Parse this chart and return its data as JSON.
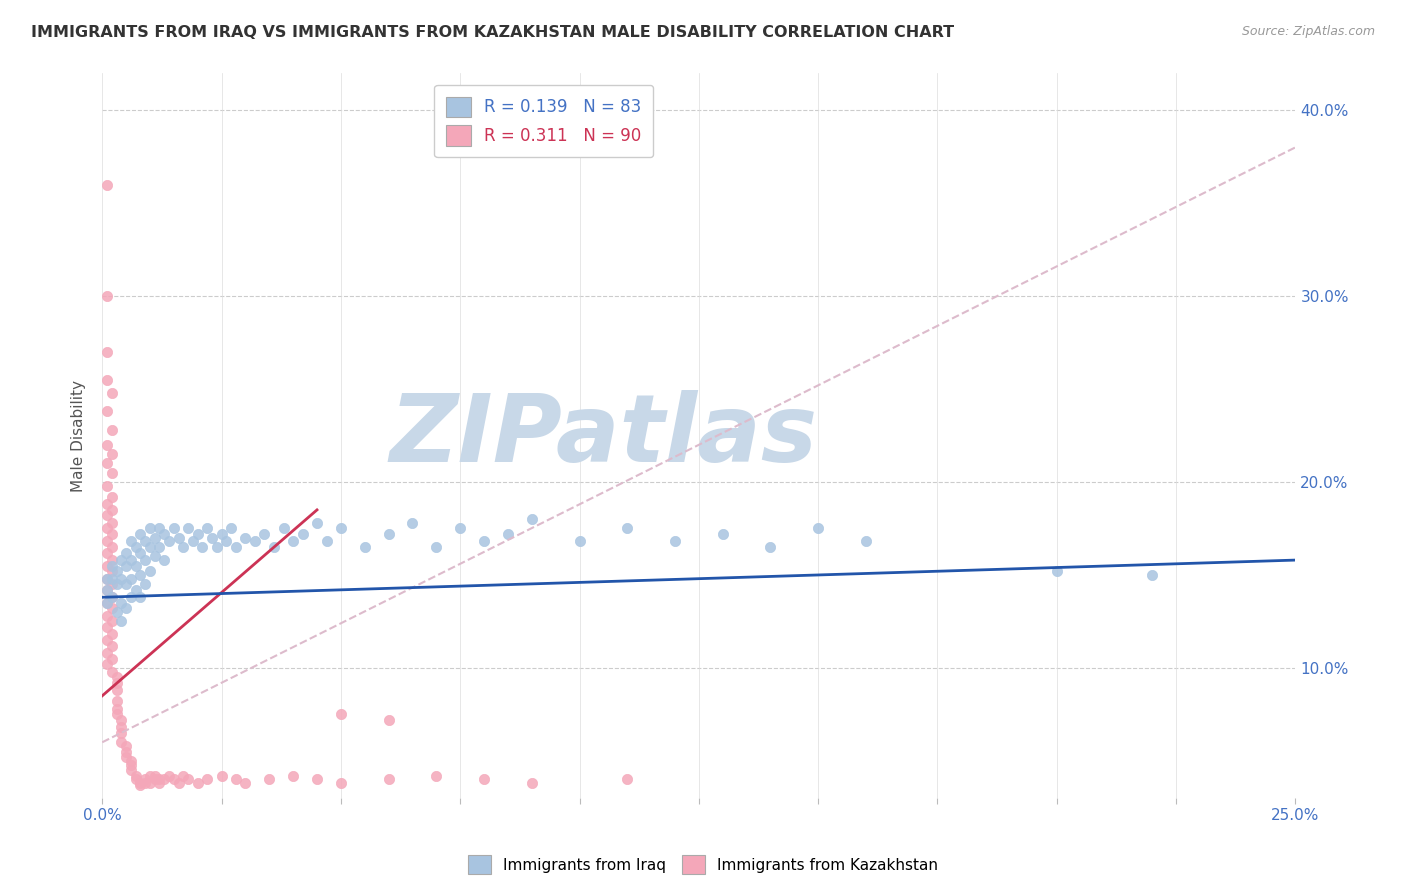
{
  "title": "IMMIGRANTS FROM IRAQ VS IMMIGRANTS FROM KAZAKHSTAN MALE DISABILITY CORRELATION CHART",
  "source": "Source: ZipAtlas.com",
  "ylabel": "Male Disability",
  "xlim": [
    0.0,
    0.25
  ],
  "ylim": [
    0.03,
    0.42
  ],
  "xticks": [
    0.0,
    0.025,
    0.05,
    0.075,
    0.1,
    0.125,
    0.15,
    0.175,
    0.2,
    0.225,
    0.25
  ],
  "xtick_labels_show": [
    "0.0%",
    "25.0%"
  ],
  "ytick_positions": [
    0.1,
    0.2,
    0.3,
    0.4
  ],
  "ytick_labels": [
    "10.0%",
    "20.0%",
    "30.0%",
    "40.0%"
  ],
  "legend_iraq_label": "R = 0.139   N = 83",
  "legend_kaz_label": "R = 0.311   N = 90",
  "iraq_color": "#a8c4e0",
  "kaz_color": "#f4a7b9",
  "iraq_line_color": "#2255aa",
  "kaz_line_color": "#cc3355",
  "kaz_dashed_color": "#ddbbcc",
  "background_color": "#ffffff",
  "watermark_text": "ZIPatlas",
  "watermark_color": "#c8d8e8",
  "scatter_size": 55,
  "iraq_scatter": [
    [
      0.001,
      0.148
    ],
    [
      0.001,
      0.142
    ],
    [
      0.001,
      0.135
    ],
    [
      0.002,
      0.155
    ],
    [
      0.002,
      0.148
    ],
    [
      0.002,
      0.138
    ],
    [
      0.003,
      0.152
    ],
    [
      0.003,
      0.145
    ],
    [
      0.003,
      0.13
    ],
    [
      0.004,
      0.158
    ],
    [
      0.004,
      0.148
    ],
    [
      0.004,
      0.135
    ],
    [
      0.004,
      0.125
    ],
    [
      0.005,
      0.162
    ],
    [
      0.005,
      0.155
    ],
    [
      0.005,
      0.145
    ],
    [
      0.005,
      0.132
    ],
    [
      0.006,
      0.168
    ],
    [
      0.006,
      0.158
    ],
    [
      0.006,
      0.148
    ],
    [
      0.006,
      0.138
    ],
    [
      0.007,
      0.165
    ],
    [
      0.007,
      0.155
    ],
    [
      0.007,
      0.142
    ],
    [
      0.008,
      0.172
    ],
    [
      0.008,
      0.162
    ],
    [
      0.008,
      0.15
    ],
    [
      0.008,
      0.138
    ],
    [
      0.009,
      0.168
    ],
    [
      0.009,
      0.158
    ],
    [
      0.009,
      0.145
    ],
    [
      0.01,
      0.175
    ],
    [
      0.01,
      0.165
    ],
    [
      0.01,
      0.152
    ],
    [
      0.011,
      0.17
    ],
    [
      0.011,
      0.16
    ],
    [
      0.012,
      0.175
    ],
    [
      0.012,
      0.165
    ],
    [
      0.013,
      0.172
    ],
    [
      0.013,
      0.158
    ],
    [
      0.014,
      0.168
    ],
    [
      0.015,
      0.175
    ],
    [
      0.016,
      0.17
    ],
    [
      0.017,
      0.165
    ],
    [
      0.018,
      0.175
    ],
    [
      0.019,
      0.168
    ],
    [
      0.02,
      0.172
    ],
    [
      0.021,
      0.165
    ],
    [
      0.022,
      0.175
    ],
    [
      0.023,
      0.17
    ],
    [
      0.024,
      0.165
    ],
    [
      0.025,
      0.172
    ],
    [
      0.026,
      0.168
    ],
    [
      0.027,
      0.175
    ],
    [
      0.028,
      0.165
    ],
    [
      0.03,
      0.17
    ],
    [
      0.032,
      0.168
    ],
    [
      0.034,
      0.172
    ],
    [
      0.036,
      0.165
    ],
    [
      0.038,
      0.175
    ],
    [
      0.04,
      0.168
    ],
    [
      0.042,
      0.172
    ],
    [
      0.045,
      0.178
    ],
    [
      0.047,
      0.168
    ],
    [
      0.05,
      0.175
    ],
    [
      0.055,
      0.165
    ],
    [
      0.06,
      0.172
    ],
    [
      0.065,
      0.178
    ],
    [
      0.07,
      0.165
    ],
    [
      0.075,
      0.175
    ],
    [
      0.08,
      0.168
    ],
    [
      0.085,
      0.172
    ],
    [
      0.09,
      0.18
    ],
    [
      0.1,
      0.168
    ],
    [
      0.11,
      0.175
    ],
    [
      0.12,
      0.168
    ],
    [
      0.13,
      0.172
    ],
    [
      0.14,
      0.165
    ],
    [
      0.15,
      0.175
    ],
    [
      0.16,
      0.168
    ],
    [
      0.2,
      0.152
    ],
    [
      0.22,
      0.15
    ]
  ],
  "kaz_scatter": [
    [
      0.001,
      0.36
    ],
    [
      0.001,
      0.3
    ],
    [
      0.001,
      0.27
    ],
    [
      0.001,
      0.255
    ],
    [
      0.002,
      0.248
    ],
    [
      0.001,
      0.238
    ],
    [
      0.002,
      0.228
    ],
    [
      0.001,
      0.22
    ],
    [
      0.002,
      0.215
    ],
    [
      0.001,
      0.21
    ],
    [
      0.002,
      0.205
    ],
    [
      0.001,
      0.198
    ],
    [
      0.002,
      0.192
    ],
    [
      0.001,
      0.188
    ],
    [
      0.002,
      0.185
    ],
    [
      0.001,
      0.182
    ],
    [
      0.002,
      0.178
    ],
    [
      0.001,
      0.175
    ],
    [
      0.002,
      0.172
    ],
    [
      0.001,
      0.168
    ],
    [
      0.002,
      0.165
    ],
    [
      0.001,
      0.162
    ],
    [
      0.002,
      0.158
    ],
    [
      0.001,
      0.155
    ],
    [
      0.002,
      0.152
    ],
    [
      0.001,
      0.148
    ],
    [
      0.002,
      0.145
    ],
    [
      0.001,
      0.142
    ],
    [
      0.002,
      0.138
    ],
    [
      0.001,
      0.135
    ],
    [
      0.002,
      0.132
    ],
    [
      0.001,
      0.128
    ],
    [
      0.002,
      0.125
    ],
    [
      0.001,
      0.122
    ],
    [
      0.002,
      0.118
    ],
    [
      0.001,
      0.115
    ],
    [
      0.002,
      0.112
    ],
    [
      0.001,
      0.108
    ],
    [
      0.002,
      0.105
    ],
    [
      0.001,
      0.102
    ],
    [
      0.002,
      0.098
    ],
    [
      0.003,
      0.095
    ],
    [
      0.003,
      0.092
    ],
    [
      0.003,
      0.088
    ],
    [
      0.003,
      0.082
    ],
    [
      0.003,
      0.078
    ],
    [
      0.003,
      0.075
    ],
    [
      0.004,
      0.072
    ],
    [
      0.004,
      0.068
    ],
    [
      0.004,
      0.065
    ],
    [
      0.004,
      0.06
    ],
    [
      0.005,
      0.058
    ],
    [
      0.005,
      0.055
    ],
    [
      0.005,
      0.052
    ],
    [
      0.006,
      0.05
    ],
    [
      0.006,
      0.048
    ],
    [
      0.006,
      0.045
    ],
    [
      0.007,
      0.042
    ],
    [
      0.007,
      0.04
    ],
    [
      0.008,
      0.038
    ],
    [
      0.008,
      0.037
    ],
    [
      0.009,
      0.038
    ],
    [
      0.009,
      0.04
    ],
    [
      0.01,
      0.042
    ],
    [
      0.01,
      0.038
    ],
    [
      0.011,
      0.04
    ],
    [
      0.011,
      0.042
    ],
    [
      0.012,
      0.04
    ],
    [
      0.012,
      0.038
    ],
    [
      0.013,
      0.04
    ],
    [
      0.014,
      0.042
    ],
    [
      0.015,
      0.04
    ],
    [
      0.016,
      0.038
    ],
    [
      0.017,
      0.042
    ],
    [
      0.018,
      0.04
    ],
    [
      0.02,
      0.038
    ],
    [
      0.022,
      0.04
    ],
    [
      0.025,
      0.042
    ],
    [
      0.028,
      0.04
    ],
    [
      0.03,
      0.038
    ],
    [
      0.035,
      0.04
    ],
    [
      0.04,
      0.042
    ],
    [
      0.045,
      0.04
    ],
    [
      0.05,
      0.038
    ],
    [
      0.06,
      0.04
    ],
    [
      0.07,
      0.042
    ],
    [
      0.08,
      0.04
    ],
    [
      0.09,
      0.038
    ],
    [
      0.11,
      0.04
    ],
    [
      0.05,
      0.075
    ],
    [
      0.06,
      0.072
    ]
  ],
  "iraq_trendline": [
    [
      0.0,
      0.138
    ],
    [
      0.25,
      0.158
    ]
  ],
  "kaz_dashed_trendline": [
    [
      0.0,
      0.06
    ],
    [
      0.25,
      0.38
    ]
  ],
  "kaz_solid_trendline": [
    [
      0.0,
      0.085
    ],
    [
      0.045,
      0.185
    ]
  ]
}
